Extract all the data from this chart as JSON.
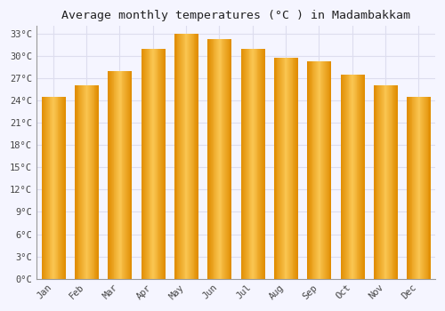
{
  "title": "Average monthly temperatures (°C ) in Madambakkam",
  "months": [
    "Jan",
    "Feb",
    "Mar",
    "Apr",
    "May",
    "Jun",
    "Jul",
    "Aug",
    "Sep",
    "Oct",
    "Nov",
    "Dec"
  ],
  "temperatures": [
    24.5,
    26.0,
    28.0,
    31.0,
    33.0,
    32.2,
    31.0,
    29.8,
    29.3,
    27.5,
    26.0,
    24.5
  ],
  "bar_color_main": "#F5A623",
  "bar_color_light": "#FDD06A",
  "bar_color_dark": "#E08C00",
  "background_color": "#F5F5FF",
  "plot_bg_color": "#F5F5FF",
  "grid_color": "#DDDDEE",
  "ylim": [
    0,
    34
  ],
  "yticks": [
    0,
    3,
    6,
    9,
    12,
    15,
    18,
    21,
    24,
    27,
    30,
    33
  ],
  "ytick_labels": [
    "0°C",
    "3°C",
    "6°C",
    "9°C",
    "12°C",
    "15°C",
    "18°C",
    "21°C",
    "24°C",
    "27°C",
    "30°C",
    "33°C"
  ],
  "title_fontsize": 9.5,
  "tick_fontsize": 7.5,
  "font_family": "monospace",
  "bar_width": 0.7
}
